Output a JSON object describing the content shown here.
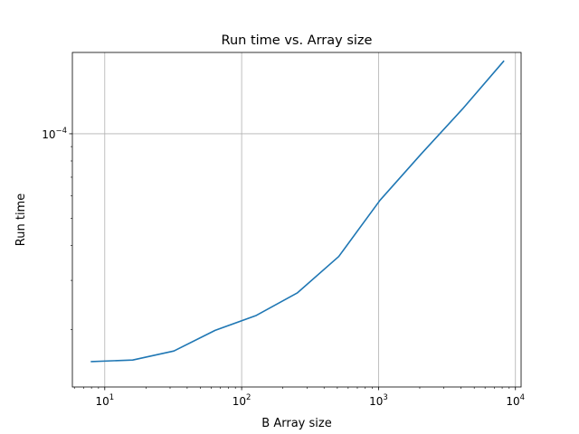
{
  "chart_data": {
    "type": "line",
    "title": "Run time vs. Array size",
    "xlabel": "B Array size",
    "ylabel": "Run time",
    "xscale": "log",
    "yscale": "log",
    "grid": true,
    "xlim": [
      5.8,
      11000
    ],
    "ylim": [
      1.25e-05,
      0.000195
    ],
    "x_ticks": [
      {
        "base": "10",
        "exp": "1",
        "value": 10
      },
      {
        "base": "10",
        "exp": "2",
        "value": 100
      },
      {
        "base": "10",
        "exp": "3",
        "value": 1000
      },
      {
        "base": "10",
        "exp": "4",
        "value": 10000
      }
    ],
    "y_ticks": [
      {
        "base": "10",
        "exp": "−4",
        "value": 0.0001
      }
    ],
    "series": [
      {
        "color": "#1f77b4",
        "x": [
          8,
          16,
          32,
          64,
          128,
          256,
          512,
          1024,
          2048,
          4096,
          8192
        ],
        "y": [
          1.54e-05,
          1.56e-05,
          1.68e-05,
          1.99e-05,
          2.25e-05,
          2.71e-05,
          3.65e-05,
          5.79e-05,
          8.47e-05,
          0.0001224,
          0.0001813
        ]
      }
    ]
  }
}
